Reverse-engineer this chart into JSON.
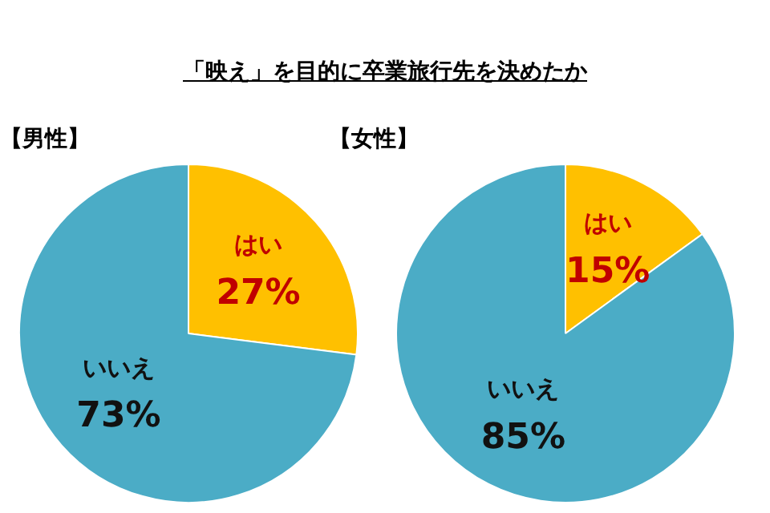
{
  "chart_data": [
    {
      "type": "pie",
      "title": "「映え」を目的に卒業旅行先を決めたか",
      "subtitle": "【男性】",
      "categories": [
        "はい",
        "いいえ"
      ],
      "values": [
        27,
        73
      ],
      "colors": [
        "#ffc000",
        "#4bacc6"
      ],
      "value_labels": [
        "27%",
        "73%"
      ],
      "legend": false
    },
    {
      "type": "pie",
      "subtitle": "【女性】",
      "categories": [
        "はい",
        "いいえ"
      ],
      "values": [
        15,
        85
      ],
      "colors": [
        "#ffc000",
        "#4bacc6"
      ],
      "value_labels": [
        "15%",
        "85%"
      ],
      "legend": false
    }
  ]
}
